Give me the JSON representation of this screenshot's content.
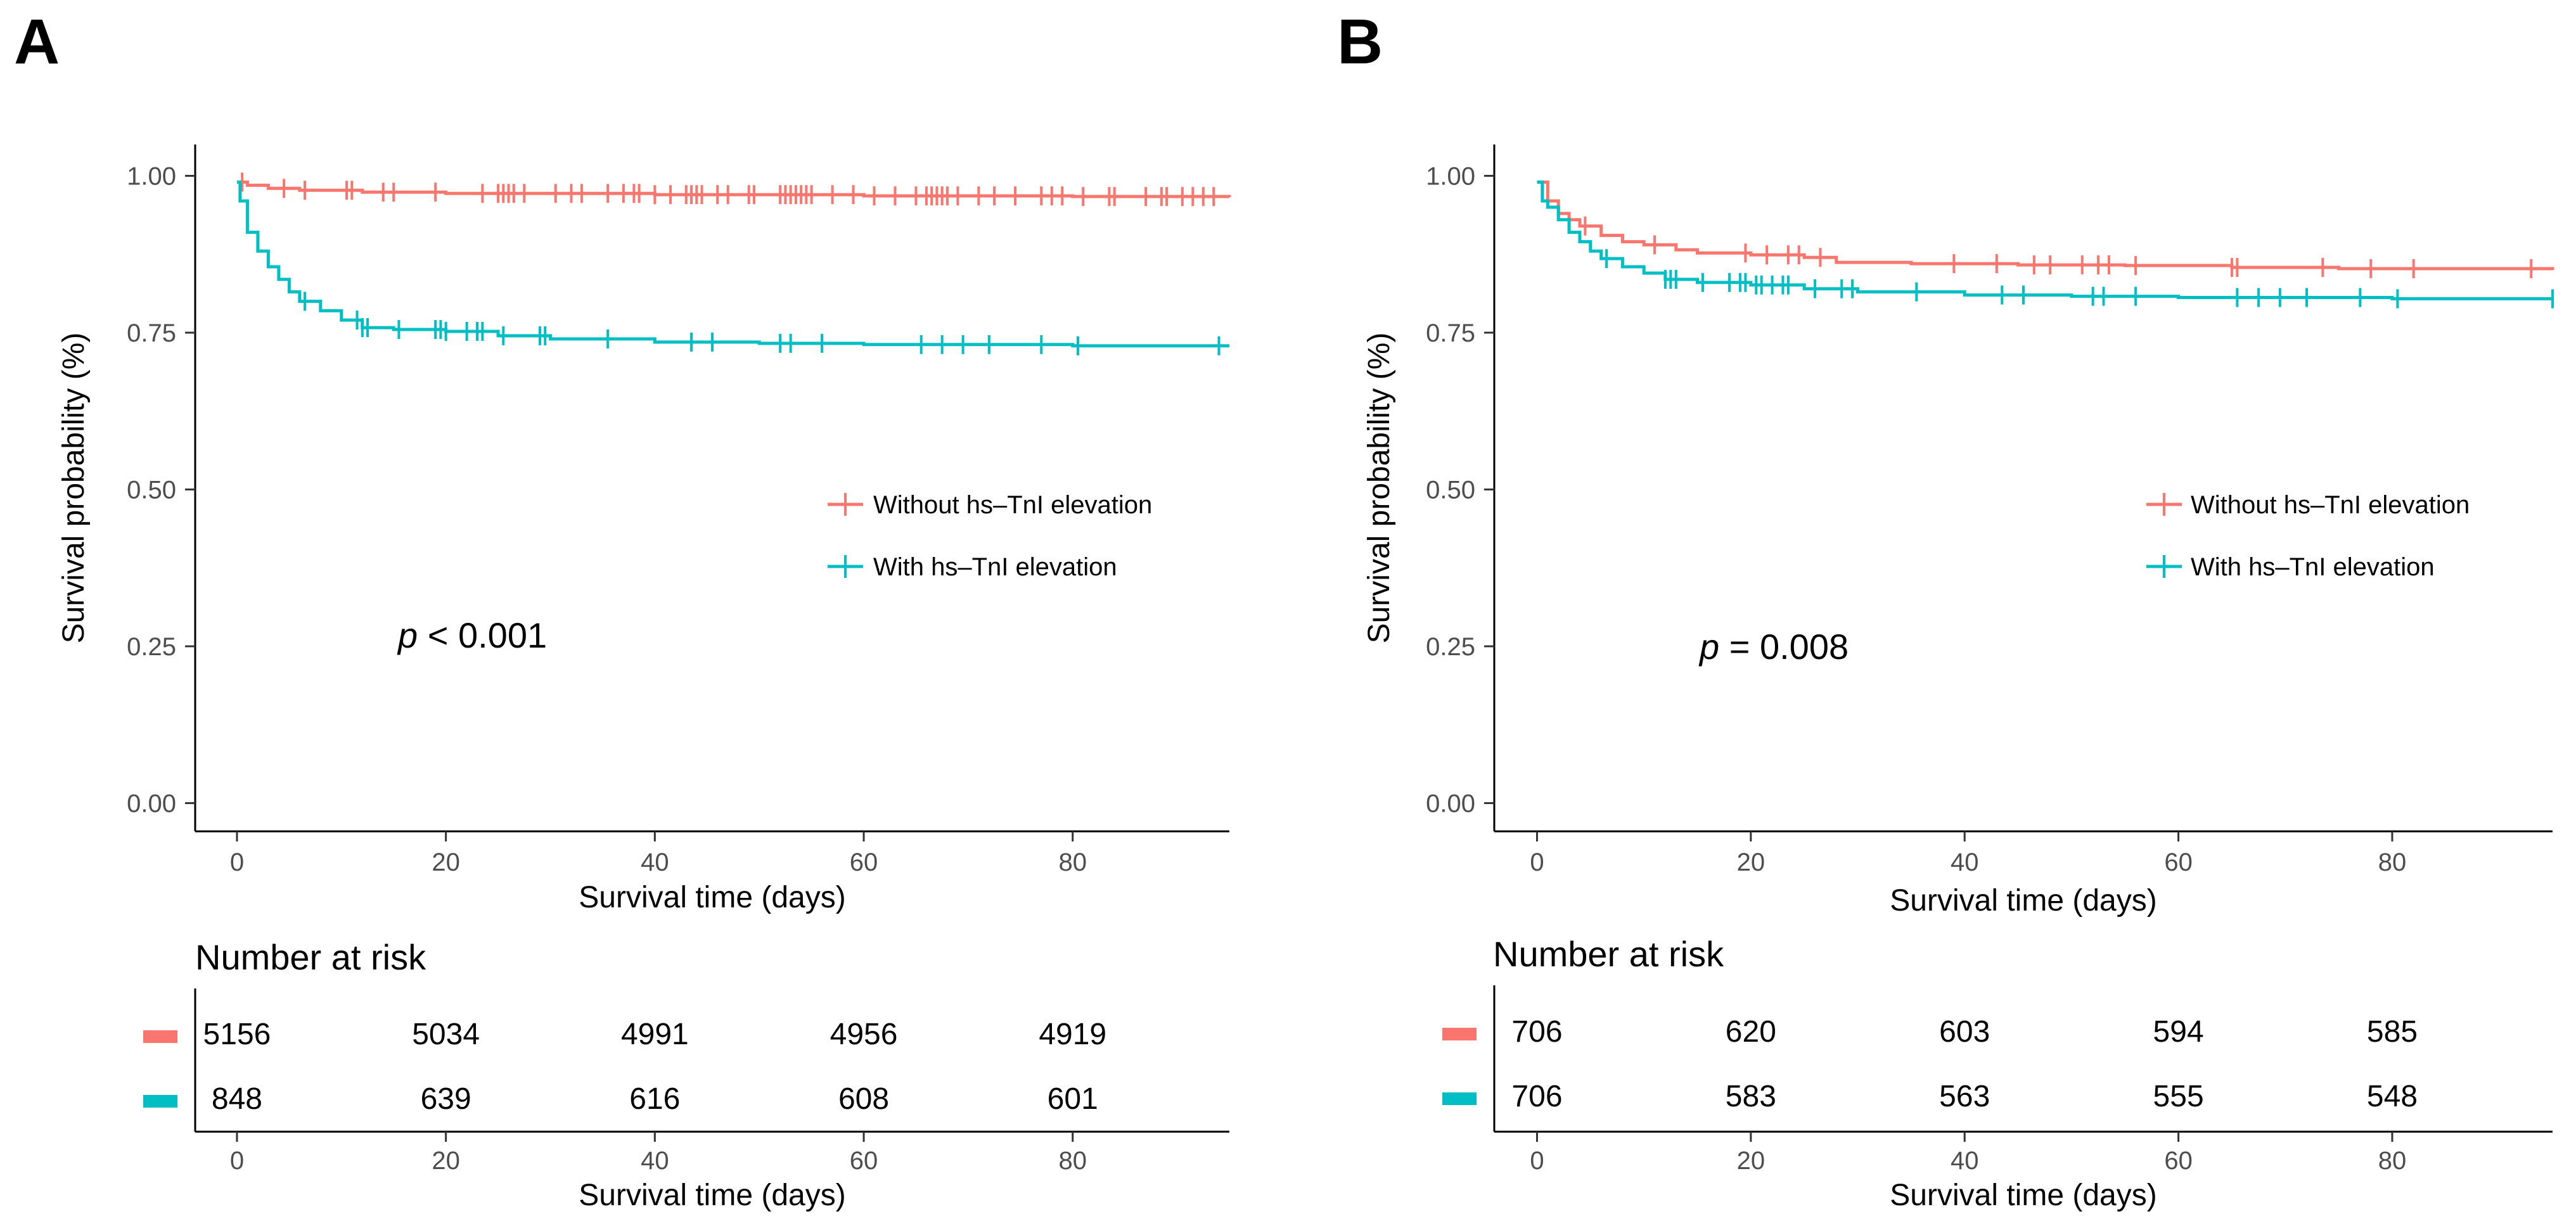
{
  "chart_data": [
    {
      "type": "line",
      "panel_label": "A",
      "xlabel": "Survival time (days)",
      "ylabel": "Survival probability (%)",
      "xlim": [
        -4,
        95
      ],
      "ylim": [
        -0.045,
        1.05
      ],
      "x_ticks": [
        0,
        20,
        40,
        60,
        80
      ],
      "y_ticks": [
        "0.00",
        "0.25",
        "0.50",
        "0.75",
        "1.00"
      ],
      "grid": false,
      "legend_position": "center-right",
      "annotation": {
        "italic": "p",
        "text": " < 0.001"
      },
      "series": [
        {
          "name": "Without hs–TnI elevation",
          "color": "#F8766D",
          "points": [
            [
              0,
              0.99
            ],
            [
              1,
              0.985
            ],
            [
              3,
              0.98
            ],
            [
              6,
              0.977
            ],
            [
              12,
              0.974
            ],
            [
              20,
              0.972
            ],
            [
              40,
              0.97
            ],
            [
              60,
              0.968
            ],
            [
              80,
              0.967
            ],
            [
              95,
              0.966
            ]
          ],
          "censor_x": [
            0.5,
            4.5,
            6.5,
            10.5,
            11,
            14,
            15,
            19,
            23.5,
            25,
            25.5,
            26,
            26.5,
            27.5,
            30.5,
            32,
            33,
            35.5,
            37,
            38,
            38.5,
            40,
            41.5,
            43,
            43.5,
            44,
            44.5,
            46,
            47,
            49,
            49.5,
            52,
            52.5,
            53,
            53.5,
            54,
            54.5,
            55,
            57,
            59,
            61,
            63,
            65,
            66,
            66.5,
            67,
            67.5,
            68,
            69,
            71,
            72.5,
            74.5,
            77,
            78,
            79,
            81,
            83.5,
            84,
            87,
            88.5,
            89,
            90.5,
            91.5,
            92.5,
            93.5
          ]
        },
        {
          "name": "With hs–TnI elevation",
          "color": "#00BFC4",
          "points": [
            [
              0,
              0.99
            ],
            [
              0.3,
              0.96
            ],
            [
              1,
              0.91
            ],
            [
              2,
              0.88
            ],
            [
              3,
              0.855
            ],
            [
              4,
              0.835
            ],
            [
              5,
              0.815
            ],
            [
              6,
              0.8
            ],
            [
              8,
              0.785
            ],
            [
              10,
              0.77
            ],
            [
              12,
              0.758
            ],
            [
              15,
              0.755
            ],
            [
              20,
              0.752
            ],
            [
              25,
              0.745
            ],
            [
              30,
              0.74
            ],
            [
              40,
              0.735
            ],
            [
              50,
              0.733
            ],
            [
              60,
              0.731
            ],
            [
              80,
              0.729
            ],
            [
              95,
              0.729
            ]
          ],
          "censor_x": [
            6.5,
            11.5,
            12,
            12.5,
            15.5,
            19,
            19.5,
            20,
            22,
            23,
            23.5,
            25.5,
            29,
            29.5,
            35.5,
            43.5,
            45.5,
            52,
            53,
            56,
            65.5,
            67.5,
            69.5,
            72,
            77,
            80.5,
            94
          ]
        }
      ],
      "risk_table": {
        "title": "Number at risk",
        "x": [
          0,
          20,
          40,
          60,
          80
        ],
        "rows": [
          {
            "color": "#F8766D",
            "values": [
              "5156",
              "5034",
              "4991",
              "4956",
              "4919"
            ]
          },
          {
            "color": "#00BFC4",
            "values": [
              "848",
              "639",
              "616",
              "608",
              "601"
            ]
          }
        ],
        "xlabel": "Survival time (days)"
      }
    },
    {
      "type": "line",
      "panel_label": "B",
      "xlabel": "Survival time (days)",
      "ylabel": "Survival probability (%)",
      "xlim": [
        -4,
        95
      ],
      "ylim": [
        -0.045,
        1.05
      ],
      "x_ticks": [
        0,
        20,
        40,
        60,
        80
      ],
      "y_ticks": [
        "0.00",
        "0.25",
        "0.50",
        "0.75",
        "1.00"
      ],
      "grid": false,
      "legend_position": "center-right",
      "annotation": {
        "italic": "p",
        "text": " = 0.008"
      },
      "series": [
        {
          "name": "Without hs–TnI elevation",
          "color": "#F8766D",
          "points": [
            [
              0,
              0.99
            ],
            [
              1,
              0.96
            ],
            [
              2,
              0.94
            ],
            [
              3,
              0.93
            ],
            [
              4,
              0.92
            ],
            [
              6,
              0.905
            ],
            [
              8,
              0.895
            ],
            [
              10,
              0.89
            ],
            [
              13,
              0.882
            ],
            [
              15,
              0.877
            ],
            [
              20,
              0.874
            ],
            [
              25,
              0.87
            ],
            [
              28,
              0.862
            ],
            [
              35,
              0.86
            ],
            [
              45,
              0.858
            ],
            [
              55,
              0.857
            ],
            [
              65,
              0.854
            ],
            [
              75,
              0.852
            ],
            [
              95,
              0.85
            ]
          ],
          "censor_x": [
            4.5,
            11,
            19.5,
            21.5,
            23.5,
            24.5,
            26.5,
            39,
            43,
            46.5,
            48,
            51,
            52.5,
            53.5,
            56,
            65,
            65.5,
            73.5,
            78,
            82,
            93
          ]
        },
        {
          "name": "With hs–TnI elevation",
          "color": "#00BFC4",
          "points": [
            [
              0,
              0.99
            ],
            [
              0.5,
              0.96
            ],
            [
              1,
              0.95
            ],
            [
              2,
              0.93
            ],
            [
              3,
              0.91
            ],
            [
              4,
              0.895
            ],
            [
              5,
              0.88
            ],
            [
              6,
              0.868
            ],
            [
              8,
              0.855
            ],
            [
              10,
              0.845
            ],
            [
              12,
              0.835
            ],
            [
              15,
              0.83
            ],
            [
              20,
              0.826
            ],
            [
              25,
              0.82
            ],
            [
              30,
              0.815
            ],
            [
              40,
              0.81
            ],
            [
              50,
              0.808
            ],
            [
              60,
              0.806
            ],
            [
              80,
              0.804
            ],
            [
              95,
              0.804
            ]
          ],
          "censor_x": [
            6.5,
            12,
            12.5,
            13,
            15.5,
            18,
            19,
            19.5,
            20.5,
            21,
            22,
            23,
            23.5,
            26,
            28.5,
            29.5,
            35.5,
            43.5,
            45.5,
            52,
            53,
            56,
            65.5,
            67.5,
            69.5,
            72,
            77,
            80.5,
            95
          ]
        }
      ],
      "risk_table": {
        "title": "Number at risk",
        "x": [
          0,
          20,
          40,
          60,
          80
        ],
        "rows": [
          {
            "color": "#F8766D",
            "values": [
              "706",
              "620",
              "603",
              "594",
              "585"
            ]
          },
          {
            "color": "#00BFC4",
            "values": [
              "706",
              "583",
              "563",
              "555",
              "548"
            ]
          }
        ],
        "xlabel": "Survival time (days)"
      }
    }
  ]
}
